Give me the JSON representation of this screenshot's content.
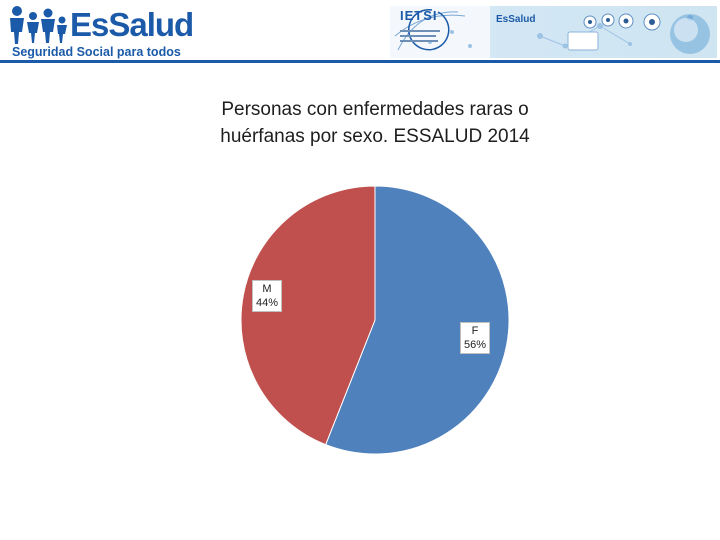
{
  "header": {
    "logo_text": "EsSalud",
    "tagline": "Seguridad Social para todos",
    "banner_brand": "IETSI",
    "banner_logo_text": "EsSalud"
  },
  "colors": {
    "brand": "#1b5aa8",
    "slice_F": "#4f81bd",
    "slice_M": "#c0504d"
  },
  "chart_data": {
    "type": "pie",
    "title": "Personas con enfermedades raras o huérfanas por sexo. ESSALUD 2014",
    "title_lines": [
      "Personas con enfermedades raras o",
      "huérfanas por sexo. ESSALUD 2014"
    ],
    "categories": [
      "F",
      "M"
    ],
    "values": [
      56,
      44
    ],
    "labels": [
      {
        "category": "F",
        "percent": "56%"
      },
      {
        "category": "M",
        "percent": "44%"
      }
    ],
    "start": "12 o'clock, clockwise",
    "legend": "none"
  }
}
